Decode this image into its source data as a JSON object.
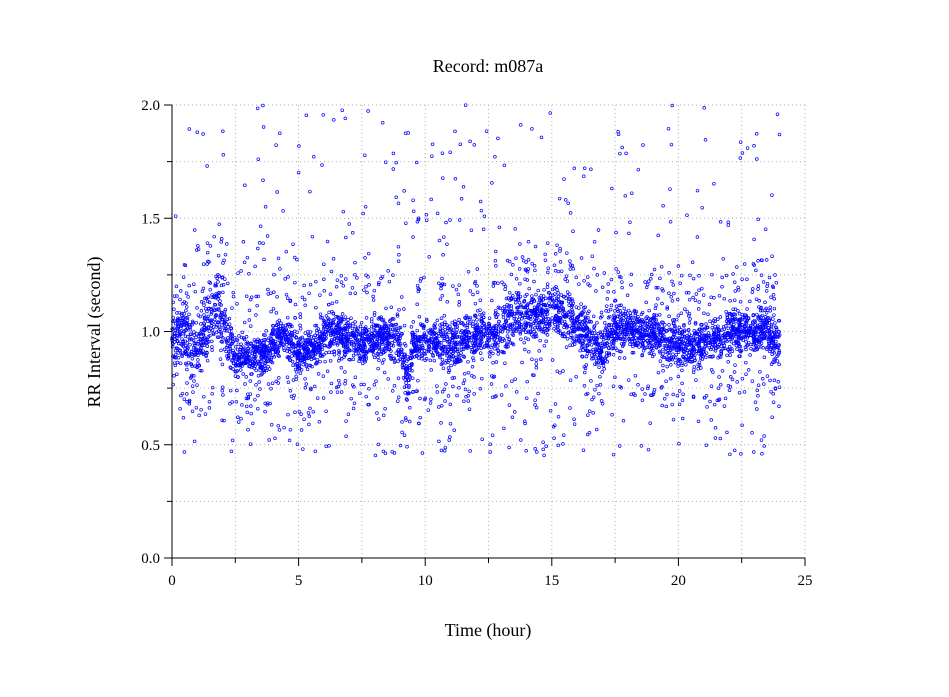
{
  "chart_data": {
    "type": "scatter",
    "title": "Record:  m087a",
    "xlabel": "Time (hour)",
    "ylabel": "RR Interval (second)",
    "xlim": [
      0,
      25
    ],
    "ylim": [
      0.0,
      2.0
    ],
    "xticks": [
      0,
      5,
      10,
      15,
      20,
      25
    ],
    "yticks": [
      0.0,
      0.5,
      1.0,
      1.5,
      2.0
    ],
    "xtick_labels": [
      "0",
      "5",
      "10",
      "15",
      "20",
      "25"
    ],
    "ytick_labels": [
      "0.0",
      "0.5",
      "1.0",
      "1.5",
      "2.0"
    ],
    "grid": true,
    "grid_style": "dotted",
    "marker_color": "#0000ff",
    "marker": "open-circle",
    "series": [
      {
        "x": [
          0.0,
          0.5,
          1.0,
          1.5,
          1.8,
          2.0,
          2.5,
          3.0,
          3.5,
          4.0,
          4.5,
          5.0,
          5.5,
          6.0,
          6.5,
          7.0,
          7.5,
          8.0,
          8.5,
          9.0,
          9.3,
          9.5,
          10.0,
          10.5,
          11.0,
          11.5,
          12.0,
          12.5,
          13.0,
          13.5,
          14.0,
          14.5,
          15.0,
          15.5,
          16.0,
          16.5,
          17.0,
          17.5,
          18.0,
          18.5,
          19.0,
          19.5,
          20.0,
          20.5,
          21.0,
          21.5,
          22.0,
          22.5,
          23.0,
          23.5,
          24.0
        ],
        "y": [
          0.98,
          1.0,
          0.9,
          1.1,
          1.2,
          1.15,
          0.85,
          0.9,
          0.85,
          0.95,
          0.98,
          0.9,
          0.92,
          1.0,
          1.0,
          0.98,
          0.95,
          0.97,
          0.98,
          0.95,
          0.75,
          0.95,
          0.97,
          0.96,
          0.95,
          0.96,
          0.98,
          1.0,
          1.0,
          1.08,
          1.1,
          1.1,
          1.12,
          1.1,
          1.05,
          1.0,
          0.95,
          1.05,
          1.03,
          1.0,
          1.0,
          0.98,
          0.95,
          0.95,
          0.96,
          0.98,
          1.0,
          1.02,
          1.0,
          1.05,
          0.95
        ],
        "band_low": [
          0.85,
          0.8,
          0.75,
          0.85,
          0.95,
          0.9,
          0.78,
          0.8,
          0.78,
          0.85,
          0.88,
          0.8,
          0.82,
          0.88,
          0.88,
          0.86,
          0.84,
          0.86,
          0.88,
          0.84,
          0.65,
          0.84,
          0.86,
          0.85,
          0.82,
          0.84,
          0.86,
          0.88,
          0.88,
          0.92,
          0.95,
          0.95,
          0.97,
          0.95,
          0.9,
          0.85,
          0.8,
          0.9,
          0.9,
          0.88,
          0.88,
          0.85,
          0.82,
          0.82,
          0.84,
          0.86,
          0.88,
          0.9,
          0.88,
          0.9,
          0.8
        ],
        "band_high": [
          1.1,
          1.15,
          1.05,
          1.25,
          1.3,
          1.25,
          0.98,
          1.0,
          0.98,
          1.05,
          1.08,
          1.0,
          1.02,
          1.1,
          1.1,
          1.08,
          1.06,
          1.08,
          1.08,
          1.06,
          0.9,
          1.06,
          1.08,
          1.07,
          1.06,
          1.07,
          1.1,
          1.12,
          1.12,
          1.2,
          1.22,
          1.22,
          1.22,
          1.2,
          1.15,
          1.1,
          1.05,
          1.15,
          1.12,
          1.1,
          1.1,
          1.08,
          1.05,
          1.05,
          1.06,
          1.08,
          1.1,
          1.12,
          1.1,
          1.15,
          1.05
        ]
      }
    ]
  }
}
